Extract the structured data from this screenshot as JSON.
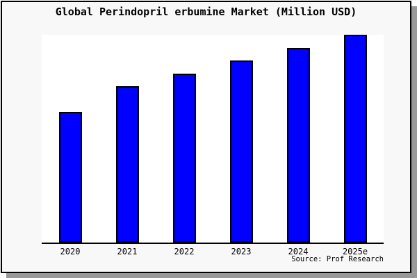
{
  "chart_data": {
    "type": "bar",
    "title": "Global Perindopril erbumine Market (Million USD)",
    "categories": [
      "2020",
      "2021",
      "2022",
      "2023",
      "2024",
      "2025e"
    ],
    "values_pct_of_max": [
      62.8,
      75.1,
      81.4,
      87.7,
      93.7,
      100
    ],
    "xlabel": "",
    "ylabel": "",
    "y_axis_visible": false,
    "grid": false,
    "legend": "none",
    "bar_color": "#0000ff",
    "bar_border_color": "#000000"
  },
  "source_note": "Source: Prof Research",
  "colors": {
    "panel_background": "#f8f8f8",
    "plot_background": "#ffffff",
    "panel_border": "#000000",
    "drop_shadow": "#999999",
    "text": "#000000"
  }
}
